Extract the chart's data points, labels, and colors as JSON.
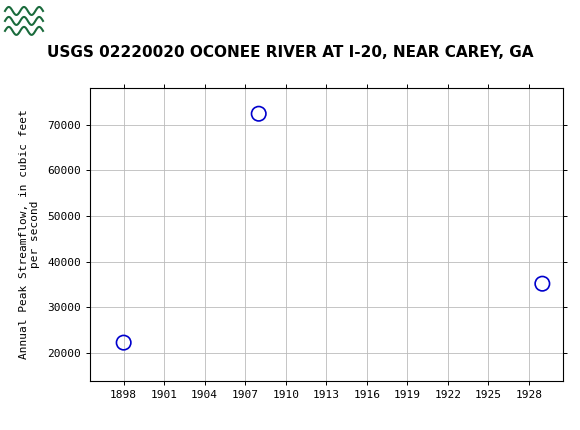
{
  "title": "USGS 02220020 OCONEE RIVER AT I-20, NEAR CAREY, GA",
  "ylabel_line1": "Annual Peak Streamflow, in cubic feet",
  "ylabel_line2": "per second",
  "data_points": [
    {
      "year": 1898,
      "flow": 22300
    },
    {
      "year": 1908,
      "flow": 72400
    },
    {
      "year": 1929,
      "flow": 35200
    }
  ],
  "xlim": [
    1895.5,
    1930.5
  ],
  "ylim": [
    14000,
    78000
  ],
  "xticks": [
    1898,
    1901,
    1904,
    1907,
    1910,
    1913,
    1916,
    1919,
    1922,
    1925,
    1928
  ],
  "yticks": [
    20000,
    30000,
    40000,
    50000,
    60000,
    70000
  ],
  "marker_color": "#0000cc",
  "marker_size": 6,
  "grid_color": "#bbbbbb",
  "bg_color": "#ffffff",
  "plot_bg": "#ffffff",
  "header_bg": "#1a6b3c",
  "title_fontsize": 11,
  "axis_label_fontsize": 8,
  "tick_fontsize": 8
}
